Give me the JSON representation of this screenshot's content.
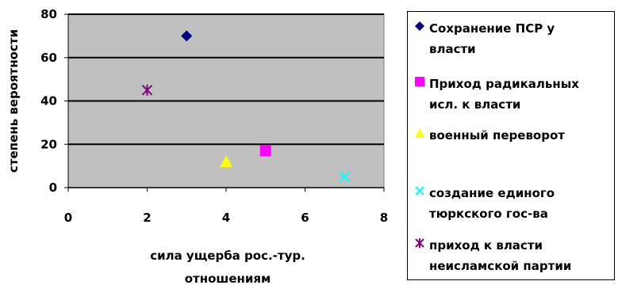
{
  "chart_data": {
    "type": "scatter",
    "xlabel_lines": [
      "сила ущерба рос.-тур.",
      "отношениям"
    ],
    "ylabel": "степень вероятности",
    "xlim": [
      0,
      8
    ],
    "ylim": [
      0,
      80
    ],
    "x_ticks": [
      "0",
      "2",
      "4",
      "6",
      "8"
    ],
    "y_ticks": [
      "0",
      "20",
      "40",
      "60",
      "80"
    ],
    "grid": "horizontal",
    "plot_background": "#c0c0c0",
    "legend_position": "right",
    "series": [
      {
        "name_lines": [
          "Сохранение ПСР у",
          "власти"
        ],
        "marker": "diamond",
        "color": "#000080",
        "x": 3,
        "y": 70
      },
      {
        "name_lines": [
          "Приход радикальных",
          "исл. к власти"
        ],
        "marker": "square",
        "color": "#ff00ff",
        "x": 5,
        "y": 17
      },
      {
        "name_lines": [
          "военный переворот"
        ],
        "marker": "triangle",
        "color": "#ffff00",
        "x": 4,
        "y": 12
      },
      {
        "name_lines": [
          "создание единого",
          "тюркского гос-ва"
        ],
        "marker": "x",
        "color": "#00ffff",
        "x": 7,
        "y": 5
      },
      {
        "name_lines": [
          "приход к власти",
          "неисламской партии"
        ],
        "marker": "star",
        "color": "#800080",
        "x": 2,
        "y": 45
      }
    ]
  }
}
